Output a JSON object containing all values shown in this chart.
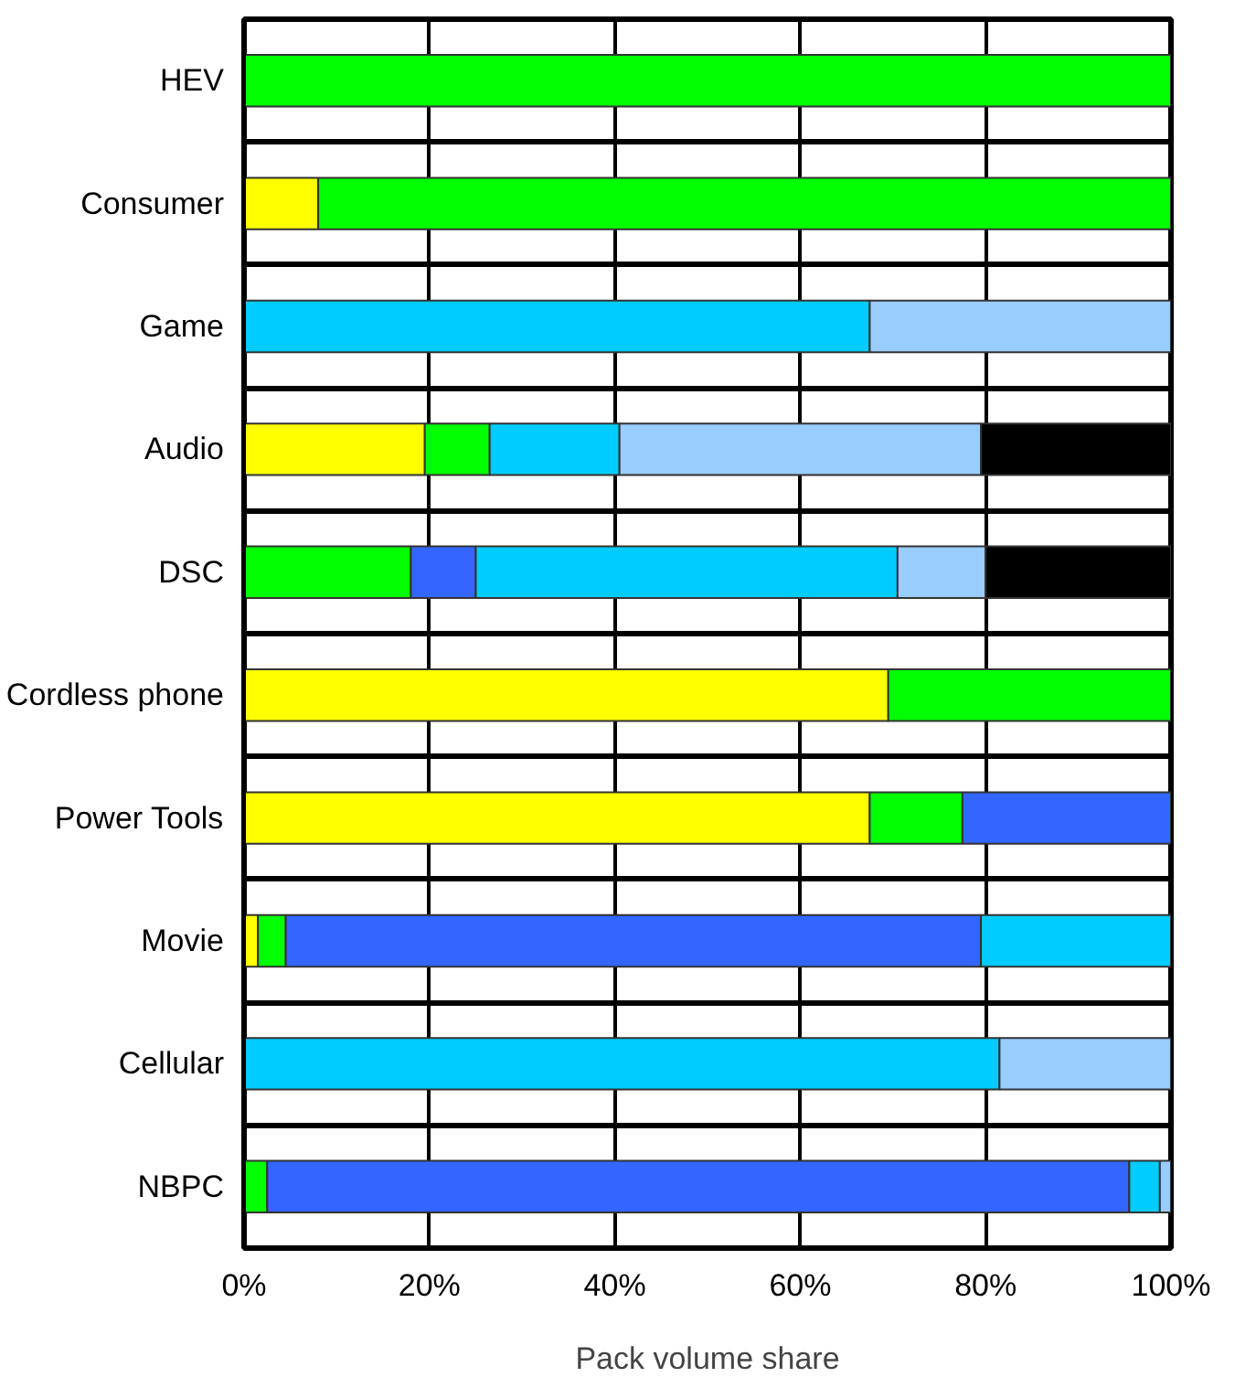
{
  "chart_data": {
    "type": "bar",
    "orientation": "horizontal",
    "stacked": true,
    "xlabel": "Pack volume share",
    "categories": [
      "HEV",
      "Consumer",
      "Game",
      "Audio",
      "DSC",
      "Cordless phone",
      "Power Tools",
      "Movie",
      "Cellular",
      "NBPC"
    ],
    "series": [
      {
        "color": "#ffff00",
        "values": [
          0,
          8,
          0,
          19.5,
          0,
          69.5,
          67.5,
          1.5,
          0,
          0
        ]
      },
      {
        "color": "#00ff00",
        "values": [
          100,
          92,
          0,
          7,
          18,
          30.5,
          10,
          3,
          0,
          2.5
        ]
      },
      {
        "color": "#3366ff",
        "values": [
          0,
          0,
          0,
          0,
          7,
          0,
          22.5,
          75,
          0,
          93
        ]
      },
      {
        "color": "#00ccff",
        "values": [
          0,
          0,
          67.5,
          14,
          45.5,
          0,
          0,
          20.5,
          81.5,
          3.3
        ]
      },
      {
        "color": "#99ccff",
        "values": [
          0,
          0,
          32.5,
          39,
          9.5,
          0,
          0,
          0,
          18.5,
          1.2
        ]
      },
      {
        "color": "#000000",
        "values": [
          0,
          0,
          0,
          20.5,
          20,
          0,
          0,
          0,
          0,
          0
        ]
      }
    ],
    "xlim": [
      0,
      100
    ],
    "xticks": [
      {
        "value": 0,
        "label": "0%"
      },
      {
        "value": 20,
        "label": "20%"
      },
      {
        "value": 40,
        "label": "40%"
      },
      {
        "value": 60,
        "label": "60%"
      },
      {
        "value": 80,
        "label": "80%"
      },
      {
        "value": 100,
        "label": "100%"
      }
    ],
    "grid": true
  }
}
